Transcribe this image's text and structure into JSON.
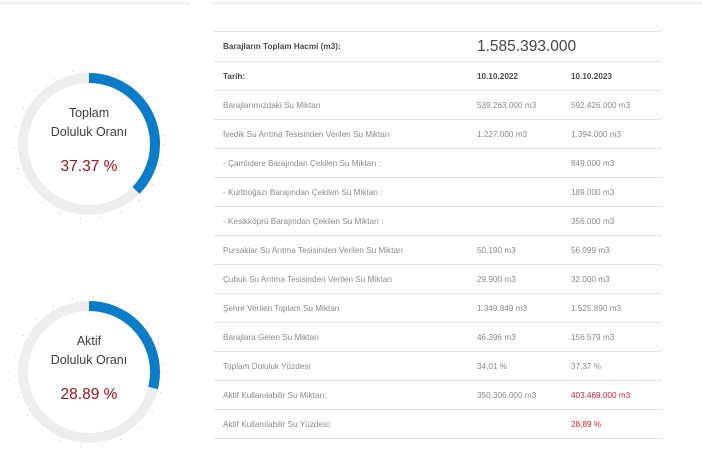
{
  "gauges": [
    {
      "title_line1": "Toplam",
      "title_line2": "Doluluk Oranı",
      "value_text": "37.37 %",
      "fraction": 0.3737,
      "accent": "#0b7dc8"
    },
    {
      "title_line1": "Aktif",
      "title_line2": "Doluluk Oranı",
      "value_text": "28.89 %",
      "fraction": 0.2889,
      "accent": "#0b7dc8"
    }
  ],
  "table": {
    "total_volume_label": "Barajların Toplam Hacmi (m3):",
    "total_volume_value": "1.585.393.000",
    "date_label": "Tarih:",
    "date_1": "10.10.2022",
    "date_2": "10.10.2023",
    "rows": [
      {
        "label": "Barajlarımızdaki Su Miktarı",
        "v1": "539.263.000 m3",
        "v2": "592.426.000 m3"
      },
      {
        "label": "İvedik Su Arıtma Tesisinden Verilen Su Miktarı",
        "v1": "1.227.000 m3",
        "v2": "1.394.000 m3"
      },
      {
        "label": "- Çamlıdere Barajından Çekilen Su Miktarı :",
        "v1": "",
        "v2": "849.000 m3"
      },
      {
        "label": "- Kurtboğazı Barajından Çekilen Su Miktarı :",
        "v1": "",
        "v2": "189.000 m3"
      },
      {
        "label": "- Kesikköprü Barajından Çekilen Su Miktarı :",
        "v1": "",
        "v2": "356.000 m3"
      },
      {
        "label": "Pursaklar Su Arıtma Tesisinden Verilen Su Miktarı",
        "v1": "50.190 m3",
        "v2": "56.099 m3"
      },
      {
        "label": "Çubuk Su Arıtma Tesisinden Verilen Su Miktarı",
        "v1": "29.900 m3",
        "v2": "32.000 m3"
      },
      {
        "label": "Şehre Verilen Toplam Su Miktarı",
        "v1": "1.349.849 m3",
        "v2": "1.525.890 m3"
      },
      {
        "label": "Barajlara Gelen Su Miktarı",
        "v1": "46.396 m3",
        "v2": "156.579 m3"
      },
      {
        "label": "Toplam Doluluk Yüzdesi",
        "v1": "34,01 %",
        "v2": "37,37 %"
      },
      {
        "label": "Aktif Kullanılabilir Su Miktarı:",
        "v1": "350.306.000 m3",
        "v2": "403.469.000 m3",
        "highlight": true
      },
      {
        "label": "Aktif Kullanılabilir Su Yüzdesi:",
        "v1": "",
        "v2": "28,89 %",
        "highlight": true
      }
    ],
    "highlight_color": "#d8232a"
  }
}
